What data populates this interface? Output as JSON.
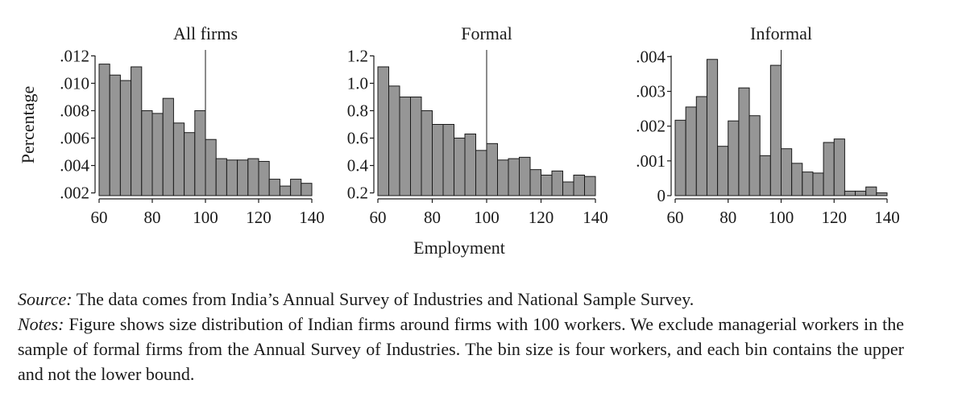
{
  "figure": {
    "ylabel": "Percentage",
    "xlabel": "Employment"
  },
  "chart_data": [
    {
      "type": "bar",
      "title": "All firms",
      "ylabel": "Percentage",
      "xlabel": "Employment",
      "bin_width": 4,
      "x": [
        62,
        66,
        70,
        74,
        78,
        82,
        86,
        90,
        94,
        98,
        102,
        106,
        110,
        114,
        118,
        122,
        126,
        130,
        134,
        138
      ],
      "values": [
        0.0114,
        0.0106,
        0.0102,
        0.0112,
        0.008,
        0.0078,
        0.0089,
        0.0071,
        0.0064,
        0.008,
        0.0059,
        0.0045,
        0.0044,
        0.0044,
        0.0045,
        0.0043,
        0.003,
        0.0025,
        0.003,
        0.0027
      ],
      "xlim": [
        58,
        142
      ],
      "ylim": [
        0.0018,
        0.0122
      ],
      "xticks": [
        60,
        80,
        100,
        120,
        140
      ],
      "xtick_labels": [
        "60",
        "80",
        "100",
        "120",
        "140"
      ],
      "yticks": [
        0.002,
        0.004,
        0.006,
        0.008,
        0.01,
        0.012
      ],
      "ytick_labels": [
        ".002",
        ".004",
        ".006",
        ".008",
        ".010",
        ".012"
      ],
      "reference_line_x": 100
    },
    {
      "type": "bar",
      "title": "Formal",
      "xlabel": "Employment",
      "bin_width": 4,
      "x": [
        62,
        66,
        70,
        74,
        78,
        82,
        86,
        90,
        94,
        98,
        102,
        106,
        110,
        114,
        118,
        122,
        126,
        130,
        134,
        138
      ],
      "values": [
        1.12,
        0.98,
        0.9,
        0.9,
        0.8,
        0.7,
        0.7,
        0.6,
        0.63,
        0.51,
        0.56,
        0.44,
        0.45,
        0.46,
        0.37,
        0.33,
        0.36,
        0.28,
        0.33,
        0.32
      ],
      "xlim": [
        58,
        142
      ],
      "ylim": [
        0.18,
        1.22
      ],
      "xticks": [
        60,
        80,
        100,
        120,
        140
      ],
      "xtick_labels": [
        "60",
        "80",
        "100",
        "120",
        "140"
      ],
      "yticks": [
        0.2,
        0.4,
        0.6,
        0.8,
        1.0,
        1.2
      ],
      "ytick_labels": [
        "0.2",
        "0.4",
        "0.6",
        "0.8",
        "1.0",
        "1.2"
      ],
      "reference_line_x": 100
    },
    {
      "type": "bar",
      "title": "Informal",
      "xlabel": "Employment",
      "bin_width": 4,
      "x": [
        62,
        66,
        70,
        74,
        78,
        82,
        86,
        90,
        94,
        98,
        102,
        106,
        110,
        114,
        118,
        122,
        126,
        130,
        134,
        138
      ],
      "values": [
        0.00217,
        0.00255,
        0.00285,
        0.00392,
        0.00142,
        0.00215,
        0.0031,
        0.0023,
        0.00115,
        0.00375,
        0.00135,
        0.00093,
        0.00068,
        0.00065,
        0.00153,
        0.00163,
        0.00013,
        0.00013,
        0.00025,
        8e-05
      ],
      "xlim": [
        58,
        142
      ],
      "ylim": [
        0,
        0.0041
      ],
      "xticks": [
        60,
        80,
        100,
        120,
        140
      ],
      "xtick_labels": [
        "60",
        "80",
        "100",
        "120",
        "140"
      ],
      "yticks": [
        0,
        0.001,
        0.002,
        0.003,
        0.004
      ],
      "ytick_labels": [
        "0",
        ".001",
        ".002",
        ".003",
        ".004"
      ],
      "reference_line_x": 100
    }
  ],
  "caption": {
    "source_lead": "Source:",
    "source_text": " The data comes from India’s Annual Survey of Industries and National Sample Survey.",
    "notes_lead": "Notes:",
    "notes_text": " Figure shows size distribution of Indian firms around firms with 100 workers. We exclude managerial workers in the sample of formal firms from the Annual Survey of Industries. The bin size is four workers, and each bin contains the upper and not the lower bound."
  },
  "colors": {
    "bar_fill": "#969696",
    "bar_stroke": "#1a1a1a",
    "axis": "#1a1a1a"
  }
}
